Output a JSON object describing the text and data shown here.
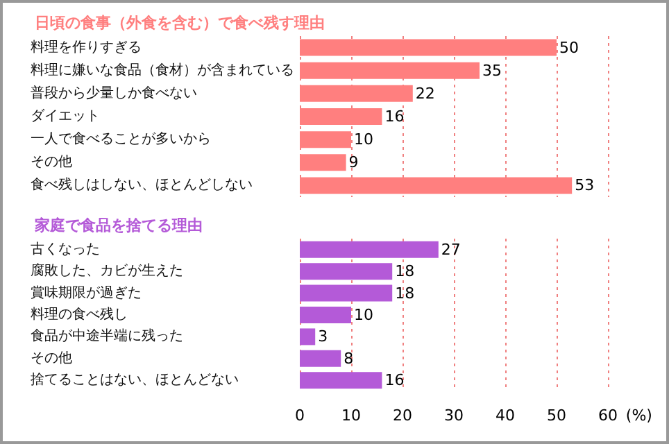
{
  "chart_data": [
    {
      "type": "bar",
      "orientation": "horizontal",
      "title": "日頃の食事（外食を含む）で食べ残す理由",
      "categories": [
        "料理を作りすぎる",
        "料理に嫌いな食品（食材）が含まれている",
        "普段から少量しか食べない",
        "ダイエット",
        "一人で食べることが多いから",
        "その他",
        "食べ残しはしない、ほとんどしない"
      ],
      "values": [
        50,
        35,
        22,
        16,
        10,
        9,
        53
      ],
      "color": "#ff7f7f",
      "data_labels": true,
      "xlim": [
        0,
        60
      ],
      "xticks": [
        0,
        10,
        20,
        30,
        40,
        50,
        60
      ],
      "grid": "x",
      "tick_labels": "y"
    },
    {
      "type": "bar",
      "orientation": "horizontal",
      "title": "家庭で食品を捨てる理由",
      "categories": [
        "古くなった",
        "腐敗した、カビが生えた",
        "賞味期限が過ぎた",
        "料理の食べ残し",
        "食品が中途半端に残った",
        "その他",
        "捨てることはない、ほとんどない"
      ],
      "values": [
        27,
        18,
        18,
        10,
        3,
        8,
        16
      ],
      "color": "#b45ad8",
      "data_labels": true,
      "xlim": [
        0,
        60
      ],
      "xticks": [
        0,
        10,
        20,
        30,
        40,
        50,
        60
      ],
      "grid": "x",
      "xlabel": "(%)"
    }
  ]
}
